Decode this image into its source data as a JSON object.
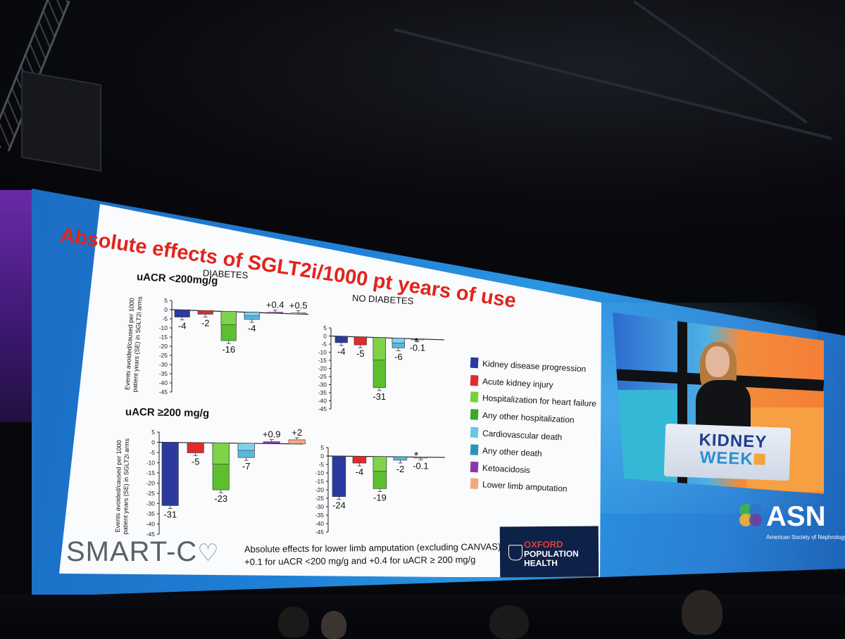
{
  "slide": {
    "title": "Absolute effects of SGLT2i/1000 pt years of use",
    "diabetes_label": "DIABETES",
    "no_diabetes_label": "NO DIABETES",
    "section_low": "uACR <200mg/g",
    "section_high": "uACR ≥200 mg/g",
    "y_axis_label_l1": "Events avoided/caused per 1000",
    "y_axis_label_l2": "patient years (SE) in SGLT2i arms",
    "asterisk": "*"
  },
  "legend": [
    {
      "label": "Kidney disease progression",
      "color": "#2a3a9e"
    },
    {
      "label": "Acute kidney injury",
      "color": "#e02b2b"
    },
    {
      "label": "Hospitalization for heart failure",
      "color": "#78d13a"
    },
    {
      "label": "Any other hospitalization",
      "color": "#3aa82a"
    },
    {
      "label": "Cardiovascular death",
      "color": "#6cc6e6"
    },
    {
      "label": "Any other death",
      "color": "#2b93b8"
    },
    {
      "label": "Ketoacidosis",
      "color": "#8a3aa8"
    },
    {
      "label": "Lower limb amputation",
      "color": "#f4a97a"
    }
  ],
  "chart_data": [
    {
      "type": "bar",
      "title": "DIABETES - uACR <200mg/g",
      "ylim": [
        -45,
        5
      ],
      "yticks": [
        "5",
        "0",
        "-5",
        "-10",
        "-15",
        "-20",
        "-25",
        "-30",
        "-35",
        "-40",
        "-45"
      ],
      "categories": [
        "Kidney disease progression",
        "Acute kidney injury",
        "Heart failure / other hospitalization",
        "Cardiovascular / other death",
        "Ketoacidosis",
        "Lower limb amputation"
      ],
      "values": [
        -4,
        -2,
        -16,
        -4,
        0.4,
        0.5
      ],
      "labels": [
        "-4",
        "-2",
        "-16",
        "-4",
        "+0.4",
        "+0.5"
      ]
    },
    {
      "type": "bar",
      "title": "NO DIABETES - uACR <200mg/g",
      "ylim": [
        -45,
        5
      ],
      "yticks": [
        "5",
        "0",
        "-5",
        "-10",
        "-15",
        "-20",
        "-25",
        "-30",
        "-35",
        "-40",
        "-45"
      ],
      "categories": [
        "Kidney disease progression",
        "Acute kidney injury",
        "Heart failure / other hospitalization",
        "Cardiovascular / other death",
        "Lower limb amputation"
      ],
      "values": [
        -4,
        -5,
        -31,
        -6,
        -0.1
      ],
      "labels": [
        "-4",
        "-5",
        "-31",
        "-6",
        "-0.1"
      ]
    },
    {
      "type": "bar",
      "title": "DIABETES - uACR ≥200 mg/g",
      "ylim": [
        -45,
        5
      ],
      "yticks": [
        "5",
        "0",
        "-5",
        "-10",
        "-15",
        "-20",
        "-25",
        "-30",
        "-35",
        "-40",
        "-45"
      ],
      "categories": [
        "Kidney disease progression",
        "Acute kidney injury",
        "Heart failure / other hospitalization",
        "Cardiovascular / other death",
        "Ketoacidosis",
        "Lower limb amputation"
      ],
      "values": [
        -31,
        -5,
        -23,
        -7,
        0.9,
        2
      ],
      "labels": [
        "-31",
        "-5",
        "-23",
        "-7",
        "+0.9",
        "+2"
      ]
    },
    {
      "type": "bar",
      "title": "NO DIABETES - uACR ≥200 mg/g",
      "ylim": [
        -45,
        5
      ],
      "yticks": [
        "5",
        "0",
        "-5",
        "-10",
        "-15",
        "-20",
        "-25",
        "-30",
        "-35",
        "-40",
        "-45"
      ],
      "categories": [
        "Kidney disease progression",
        "Acute kidney injury",
        "Heart failure / other hospitalization",
        "Cardiovascular / other death",
        "Lower limb amputation"
      ],
      "values": [
        -24,
        -4,
        -19,
        -2,
        -0.1
      ],
      "labels": [
        "-24",
        "-4",
        "-19",
        "-2",
        "-0.1"
      ]
    }
  ],
  "footnote": {
    "line1": "Absolute effects for lower limb amputation (excluding CANVAS):",
    "line2": "+0.1 for uACR <200 mg/g and +0.4 for uACR ≥ 200 mg/g"
  },
  "logos": {
    "smart_c": "SMART-C",
    "oxford_l1": "OXFORD",
    "oxford_l2": "POPULATION",
    "oxford_l3": "HEALTH",
    "kidney": "KIDNEY",
    "week": "WEEK",
    "asn": "ASN",
    "asn_sub": "American Society of Nephrology"
  }
}
